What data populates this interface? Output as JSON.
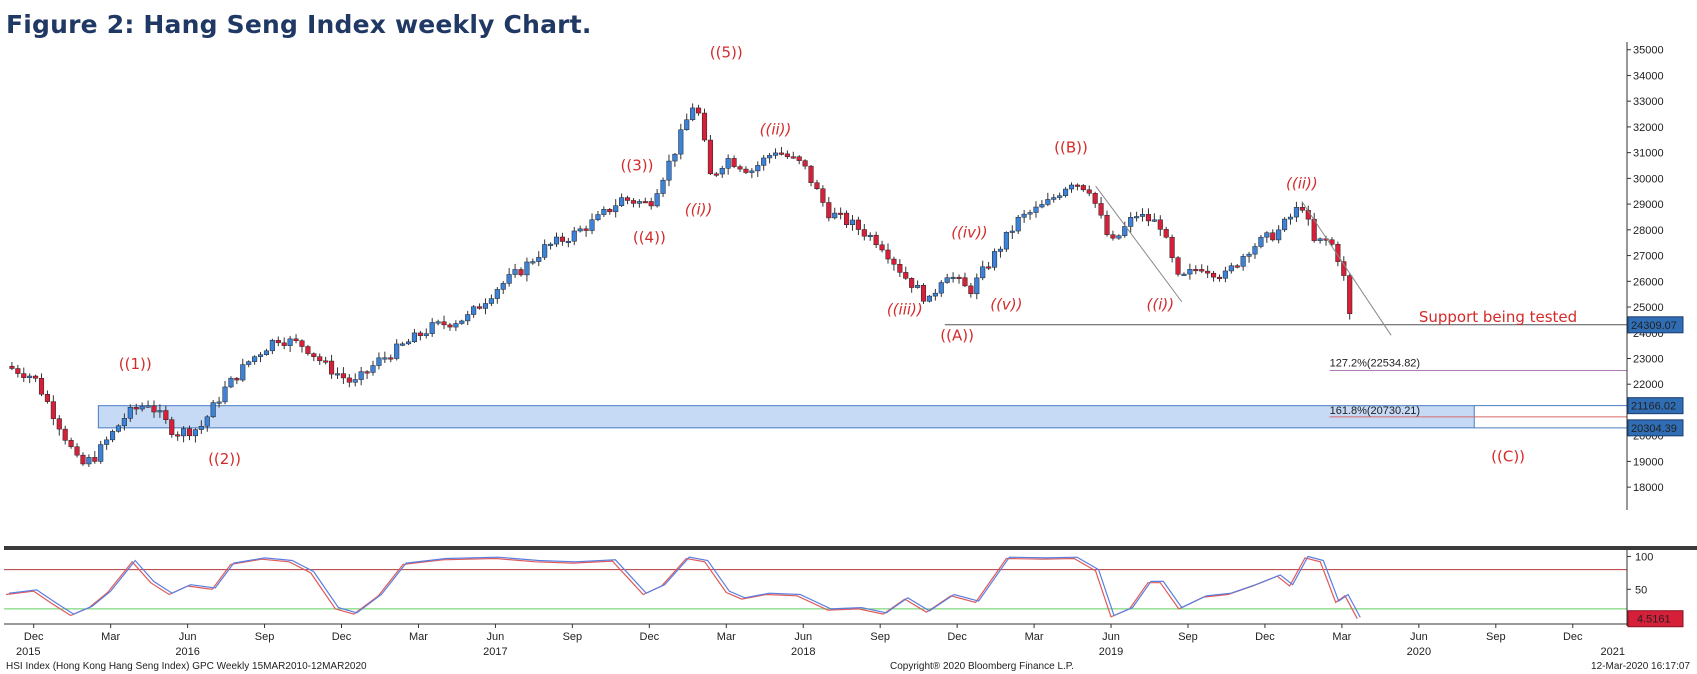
{
  "title": "Figure 2: Hang Seng Index weekly Chart.",
  "chart_data": {
    "type": "candlestick",
    "instrument": "HSI Index (Hong Kong Hang Seng Index) GPC  Weekly 15MAR2010-12MAR2020",
    "copyright": "Copyright® 2020 Bloomberg Finance L.P.",
    "timestamp": "12-Mar-2020 16:17:07",
    "ylim": [
      17500,
      35300
    ],
    "yticks": [
      18000,
      19000,
      20000,
      21000,
      22000,
      23000,
      24000,
      25000,
      26000,
      27000,
      28000,
      29000,
      30000,
      31000,
      32000,
      33000,
      34000,
      35000
    ],
    "x_axis": {
      "months": [
        {
          "label": "Dec",
          "t": 2015.92
        },
        {
          "label": "Mar",
          "t": 2016.17
        },
        {
          "label": "Jun",
          "t": 2016.42
        },
        {
          "label": "Sep",
          "t": 2016.67
        },
        {
          "label": "Dec",
          "t": 2016.92
        },
        {
          "label": "Mar",
          "t": 2017.17
        },
        {
          "label": "Jun",
          "t": 2017.42
        },
        {
          "label": "Sep",
          "t": 2017.67
        },
        {
          "label": "Dec",
          "t": 2017.92
        },
        {
          "label": "Mar",
          "t": 2018.17
        },
        {
          "label": "Jun",
          "t": 2018.42
        },
        {
          "label": "Sep",
          "t": 2018.67
        },
        {
          "label": "Dec",
          "t": 2018.92
        },
        {
          "label": "Mar",
          "t": 2019.17
        },
        {
          "label": "Jun",
          "t": 2019.42
        },
        {
          "label": "Sep",
          "t": 2019.67
        },
        {
          "label": "Dec",
          "t": 2019.92
        },
        {
          "label": "Mar",
          "t": 2020.17
        },
        {
          "label": "Jun",
          "t": 2020.42
        },
        {
          "label": "Sep",
          "t": 2020.67
        },
        {
          "label": "Dec",
          "t": 2020.92
        }
      ],
      "years": [
        {
          "label": "2015",
          "t": 2015.92
        },
        {
          "label": "2016",
          "t": 2016.42
        },
        {
          "label": "2017",
          "t": 2017.42
        },
        {
          "label": "2018",
          "t": 2018.42
        },
        {
          "label": "2019",
          "t": 2019.42
        },
        {
          "label": "2020",
          "t": 2020.42
        },
        {
          "label": "2021",
          "t": 2021.05
        }
      ]
    },
    "price_path": [
      {
        "t": 2015.83,
        "v": 22700
      },
      {
        "t": 2015.92,
        "v": 22300
      },
      {
        "t": 2016.0,
        "v": 20500
      },
      {
        "t": 2016.07,
        "v": 18800
      },
      {
        "t": 2016.12,
        "v": 19200
      },
      {
        "t": 2016.22,
        "v": 20800
      },
      {
        "t": 2016.29,
        "v": 21300
      },
      {
        "t": 2016.38,
        "v": 20100
      },
      {
        "t": 2016.46,
        "v": 20300
      },
      {
        "t": 2016.54,
        "v": 21800
      },
      {
        "t": 2016.62,
        "v": 22900
      },
      {
        "t": 2016.71,
        "v": 23800
      },
      {
        "t": 2016.8,
        "v": 23500
      },
      {
        "t": 2016.87,
        "v": 22700
      },
      {
        "t": 2016.96,
        "v": 22000
      },
      {
        "t": 2017.04,
        "v": 22900
      },
      {
        "t": 2017.12,
        "v": 23500
      },
      {
        "t": 2017.21,
        "v": 24200
      },
      {
        "t": 2017.33,
        "v": 24600
      },
      {
        "t": 2017.42,
        "v": 25700
      },
      {
        "t": 2017.5,
        "v": 26400
      },
      {
        "t": 2017.58,
        "v": 27300
      },
      {
        "t": 2017.67,
        "v": 27800
      },
      {
        "t": 2017.75,
        "v": 28400
      },
      {
        "t": 2017.83,
        "v": 29200
      },
      {
        "t": 2017.92,
        "v": 29000
      },
      {
        "t": 2018.0,
        "v": 31000
      },
      {
        "t": 2018.07,
        "v": 33100
      },
      {
        "t": 2018.12,
        "v": 30000
      },
      {
        "t": 2018.17,
        "v": 30800
      },
      {
        "t": 2018.25,
        "v": 30300
      },
      {
        "t": 2018.33,
        "v": 31100
      },
      {
        "t": 2018.42,
        "v": 30500
      },
      {
        "t": 2018.5,
        "v": 28700
      },
      {
        "t": 2018.58,
        "v": 28200
      },
      {
        "t": 2018.67,
        "v": 27500
      },
      {
        "t": 2018.75,
        "v": 26200
      },
      {
        "t": 2018.83,
        "v": 25200
      },
      {
        "t": 2018.88,
        "v": 26400
      },
      {
        "t": 2018.96,
        "v": 25600
      },
      {
        "t": 2019.04,
        "v": 27000
      },
      {
        "t": 2019.12,
        "v": 28400
      },
      {
        "t": 2019.21,
        "v": 29000
      },
      {
        "t": 2019.29,
        "v": 29900
      },
      {
        "t": 2019.35,
        "v": 29600
      },
      {
        "t": 2019.42,
        "v": 27400
      },
      {
        "t": 2019.5,
        "v": 28600
      },
      {
        "t": 2019.58,
        "v": 28200
      },
      {
        "t": 2019.64,
        "v": 26000
      },
      {
        "t": 2019.71,
        "v": 26600
      },
      {
        "t": 2019.79,
        "v": 26200
      },
      {
        "t": 2019.87,
        "v": 27300
      },
      {
        "t": 2019.96,
        "v": 27900
      },
      {
        "t": 2020.04,
        "v": 29000
      },
      {
        "t": 2020.08,
        "v": 27500
      },
      {
        "t": 2020.13,
        "v": 27600
      },
      {
        "t": 2020.17,
        "v": 26600
      },
      {
        "t": 2020.2,
        "v": 24300
      }
    ],
    "wave_labels": [
      {
        "text": "((1))",
        "t": 2016.25,
        "v": 22600
      },
      {
        "text": "((2))",
        "t": 2016.54,
        "v": 18900
      },
      {
        "text": "((3))",
        "t": 2017.88,
        "v": 30300
      },
      {
        "text": "((4))",
        "t": 2017.92,
        "v": 27500
      },
      {
        "text": "((5))",
        "t": 2018.17,
        "v": 34700
      },
      {
        "text": "((i))",
        "t": 2018.08,
        "v": 28600
      },
      {
        "text": "((ii))",
        "t": 2018.33,
        "v": 31700
      },
      {
        "text": "((iii))",
        "t": 2018.75,
        "v": 24700
      },
      {
        "text": "((iv))",
        "t": 2018.96,
        "v": 27700
      },
      {
        "text": "((v))",
        "t": 2019.08,
        "v": 24900
      },
      {
        "text": "((A))",
        "t": 2018.92,
        "v": 23700
      },
      {
        "text": "((B))",
        "t": 2019.29,
        "v": 31000
      },
      {
        "text": "((i))",
        "t": 2019.58,
        "v": 24900
      },
      {
        "text": "((ii))",
        "t": 2020.04,
        "v": 29600
      },
      {
        "text": "((C))",
        "t": 2020.71,
        "v": 19000
      }
    ],
    "annotations": {
      "support_label": "Support being tested",
      "support_level": 24309.07,
      "support_tag": "24309.07",
      "fib_127": {
        "label": "127.2%(22534.82)",
        "level": 22534.82
      },
      "fib_162": {
        "label": "161.8%(20730.21)",
        "level": 20730.21
      },
      "zone_top": {
        "tag": "21166.02",
        "level": 21166.02
      },
      "zone_bottom": {
        "tag": "20304.39",
        "level": 20304.39
      }
    },
    "oscillator": {
      "ylim": [
        0,
        110
      ],
      "ticks": [
        100,
        50
      ],
      "upper_band": 80,
      "lower_band": 20,
      "last_value": "4.5161",
      "path": [
        {
          "t": 2015.83,
          "v": 42
        },
        {
          "t": 2015.92,
          "v": 47
        },
        {
          "t": 2015.98,
          "v": 28
        },
        {
          "t": 2016.04,
          "v": 10
        },
        {
          "t": 2016.1,
          "v": 22
        },
        {
          "t": 2016.16,
          "v": 45
        },
        {
          "t": 2016.24,
          "v": 92
        },
        {
          "t": 2016.3,
          "v": 60
        },
        {
          "t": 2016.36,
          "v": 42
        },
        {
          "t": 2016.42,
          "v": 55
        },
        {
          "t": 2016.5,
          "v": 50
        },
        {
          "t": 2016.56,
          "v": 88
        },
        {
          "t": 2016.66,
          "v": 96
        },
        {
          "t": 2016.75,
          "v": 92
        },
        {
          "t": 2016.82,
          "v": 75
        },
        {
          "t": 2016.9,
          "v": 20
        },
        {
          "t": 2016.96,
          "v": 12
        },
        {
          "t": 2017.04,
          "v": 40
        },
        {
          "t": 2017.12,
          "v": 88
        },
        {
          "t": 2017.25,
          "v": 95
        },
        {
          "t": 2017.42,
          "v": 97
        },
        {
          "t": 2017.55,
          "v": 92
        },
        {
          "t": 2017.67,
          "v": 90
        },
        {
          "t": 2017.8,
          "v": 93
        },
        {
          "t": 2017.9,
          "v": 42
        },
        {
          "t": 2017.96,
          "v": 55
        },
        {
          "t": 2018.04,
          "v": 97
        },
        {
          "t": 2018.1,
          "v": 92
        },
        {
          "t": 2018.17,
          "v": 45
        },
        {
          "t": 2018.22,
          "v": 35
        },
        {
          "t": 2018.3,
          "v": 42
        },
        {
          "t": 2018.4,
          "v": 40
        },
        {
          "t": 2018.5,
          "v": 18
        },
        {
          "t": 2018.6,
          "v": 20
        },
        {
          "t": 2018.68,
          "v": 12
        },
        {
          "t": 2018.75,
          "v": 35
        },
        {
          "t": 2018.82,
          "v": 15
        },
        {
          "t": 2018.9,
          "v": 40
        },
        {
          "t": 2018.98,
          "v": 30
        },
        {
          "t": 2019.08,
          "v": 97
        },
        {
          "t": 2019.2,
          "v": 96
        },
        {
          "t": 2019.3,
          "v": 97
        },
        {
          "t": 2019.37,
          "v": 78
        },
        {
          "t": 2019.42,
          "v": 8
        },
        {
          "t": 2019.48,
          "v": 20
        },
        {
          "t": 2019.54,
          "v": 60
        },
        {
          "t": 2019.58,
          "v": 60
        },
        {
          "t": 2019.64,
          "v": 20
        },
        {
          "t": 2019.72,
          "v": 38
        },
        {
          "t": 2019.8,
          "v": 42
        },
        {
          "t": 2019.88,
          "v": 55
        },
        {
          "t": 2019.96,
          "v": 70
        },
        {
          "t": 2020.0,
          "v": 55
        },
        {
          "t": 2020.05,
          "v": 98
        },
        {
          "t": 2020.1,
          "v": 92
        },
        {
          "t": 2020.15,
          "v": 30
        },
        {
          "t": 2020.18,
          "v": 40
        },
        {
          "t": 2020.22,
          "v": 5
        }
      ]
    }
  }
}
